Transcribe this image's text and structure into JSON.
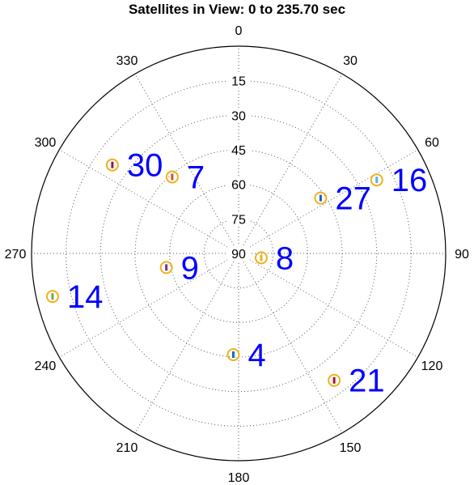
{
  "chart_data": {
    "type": "scatter",
    "projection": "polar-skyplot",
    "title": "Satellites in View: 0 to 235.70 sec",
    "azimuth_ticks": [
      "0",
      "30",
      "60",
      "90",
      "120",
      "150",
      "180",
      "210",
      "240",
      "270",
      "300",
      "330"
    ],
    "elevation_ticks": [
      "15",
      "30",
      "45",
      "60",
      "75",
      "90"
    ],
    "elevation_range": [
      0,
      90
    ],
    "grid": true,
    "satellites": [
      {
        "id": "16",
        "azimuth": 62,
        "elevation": 22,
        "color": "#4db8e8"
      },
      {
        "id": "27",
        "azimuth": 56,
        "elevation": 47,
        "color": "#1f5fbf"
      },
      {
        "id": "30",
        "azimuth": 305,
        "elevation": 23,
        "color": "#a2142f"
      },
      {
        "id": "7",
        "azimuth": 319,
        "elevation": 46,
        "color": "#d95319"
      },
      {
        "id": "8",
        "azimuth": 101,
        "elevation": 80,
        "color": "#edb120"
      },
      {
        "id": "9",
        "azimuth": 259,
        "elevation": 58,
        "color": "#7e2f8e"
      },
      {
        "id": "14",
        "azimuth": 257,
        "elevation": 7,
        "color": "#77ac30"
      },
      {
        "id": "4",
        "azimuth": 183,
        "elevation": 46,
        "color": "#0072bd"
      },
      {
        "id": "21",
        "azimuth": 143,
        "elevation": 21,
        "color": "#a2142f"
      }
    ]
  }
}
